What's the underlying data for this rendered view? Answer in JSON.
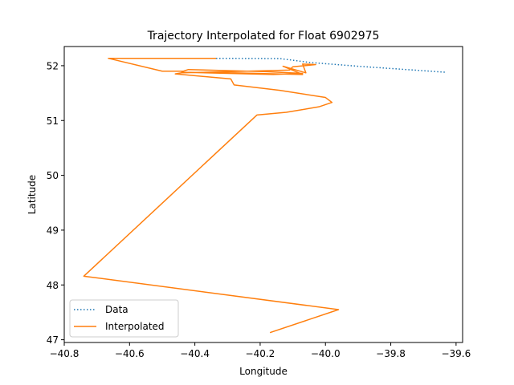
{
  "chart_data": {
    "type": "line",
    "title": "Trajectory Interpolated for Float 6902975",
    "xlabel": "Longitude",
    "ylabel": "Latitude",
    "xlim": [
      -40.8,
      -39.58
    ],
    "ylim": [
      46.95,
      52.35
    ],
    "grid": false,
    "legend_position": "lower-left",
    "xticks": [
      -40.8,
      -40.6,
      -40.4,
      -40.2,
      -40.0,
      -39.8,
      -39.6
    ],
    "xtick_labels": [
      "−40.8",
      "−40.6",
      "−40.4",
      "−40.2",
      "−40.0",
      "−39.8",
      "−39.6"
    ],
    "yticks": [
      47,
      48,
      49,
      50,
      51,
      52
    ],
    "ytick_labels": [
      "47",
      "48",
      "49",
      "50",
      "51",
      "52"
    ],
    "series": [
      {
        "name": "Data",
        "color": "#1f77b4",
        "style": "dotted",
        "points": [
          [
            -40.335,
            52.135
          ],
          [
            -40.14,
            52.13
          ],
          [
            -40.1,
            52.1
          ],
          [
            -40.05,
            52.06
          ],
          [
            -39.9,
            51.99
          ],
          [
            -39.63,
            51.88
          ]
        ]
      },
      {
        "name": "Interpolated",
        "color": "#ff7f0e",
        "style": "solid",
        "points": [
          [
            -40.335,
            52.135
          ],
          [
            -40.665,
            52.135
          ],
          [
            -40.5,
            51.9
          ],
          [
            -40.435,
            51.9
          ],
          [
            -40.42,
            51.93
          ],
          [
            -40.18,
            51.89
          ],
          [
            -40.07,
            51.86
          ],
          [
            -40.16,
            51.84
          ],
          [
            -40.44,
            51.88
          ],
          [
            -40.29,
            51.87
          ],
          [
            -40.07,
            51.84
          ],
          [
            -40.13,
            51.99
          ],
          [
            -40.06,
            51.87
          ],
          [
            -40.07,
            52.03
          ],
          [
            -40.03,
            52.02
          ],
          [
            -40.1,
            51.98
          ],
          [
            -40.11,
            51.92
          ],
          [
            -40.44,
            51.87
          ],
          [
            -40.46,
            51.85
          ],
          [
            -40.29,
            51.76
          ],
          [
            -40.28,
            51.65
          ],
          [
            -40.14,
            51.55
          ],
          [
            -40.0,
            51.42
          ],
          [
            -39.98,
            51.33
          ],
          [
            -40.02,
            51.25
          ],
          [
            -40.12,
            51.15
          ],
          [
            -40.21,
            51.1
          ],
          [
            -40.74,
            48.16
          ],
          [
            -39.96,
            47.55
          ],
          [
            -40.17,
            47.13
          ]
        ]
      }
    ]
  }
}
